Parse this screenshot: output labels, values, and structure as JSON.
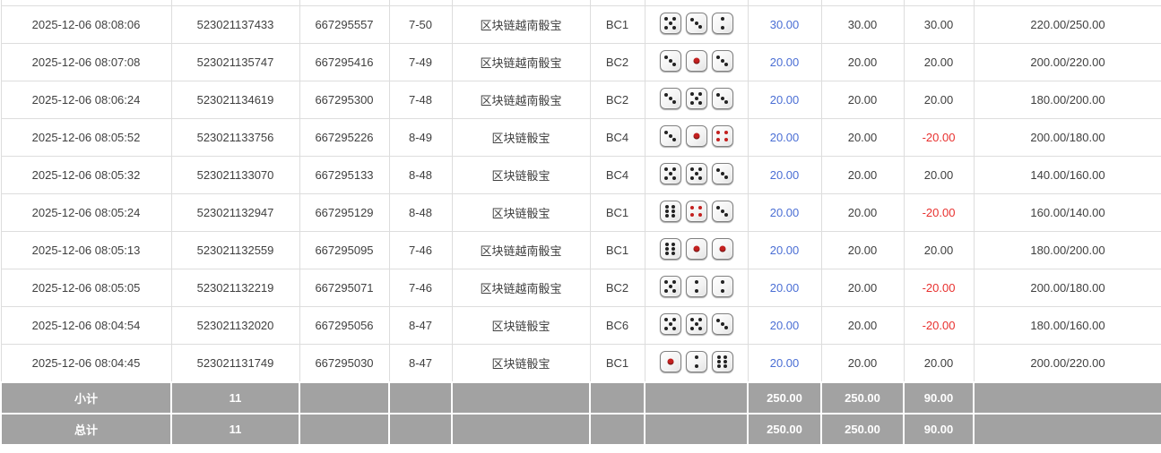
{
  "table": {
    "rows": [
      {
        "time": "2025-12-06 08:08:06",
        "order_no": "523021137433",
        "round_no": "667295557",
        "period": "7-50",
        "game": "区块链越南骰宝",
        "bet_type": "BC1",
        "dice": [
          5,
          3,
          2
        ],
        "bet_amount": "30.00",
        "valid_amount": "30.00",
        "win_loss": "30.00",
        "balance": "220.00/250.00"
      },
      {
        "time": "2025-12-06 08:07:08",
        "order_no": "523021135747",
        "round_no": "667295416",
        "period": "7-49",
        "game": "区块链越南骰宝",
        "bet_type": "BC2",
        "dice": [
          3,
          1,
          3
        ],
        "bet_amount": "20.00",
        "valid_amount": "20.00",
        "win_loss": "20.00",
        "balance": "200.00/220.00"
      },
      {
        "time": "2025-12-06 08:06:24",
        "order_no": "523021134619",
        "round_no": "667295300",
        "period": "7-48",
        "game": "区块链越南骰宝",
        "bet_type": "BC2",
        "dice": [
          3,
          5,
          3
        ],
        "bet_amount": "20.00",
        "valid_amount": "20.00",
        "win_loss": "20.00",
        "balance": "180.00/200.00"
      },
      {
        "time": "2025-12-06 08:05:52",
        "order_no": "523021133756",
        "round_no": "667295226",
        "period": "8-49",
        "game": "区块链骰宝",
        "bet_type": "BC4",
        "dice": [
          3,
          1,
          4
        ],
        "bet_amount": "20.00",
        "valid_amount": "20.00",
        "win_loss": "-20.00",
        "balance": "200.00/180.00"
      },
      {
        "time": "2025-12-06 08:05:32",
        "order_no": "523021133070",
        "round_no": "667295133",
        "period": "8-48",
        "game": "区块链骰宝",
        "bet_type": "BC4",
        "dice": [
          5,
          5,
          3
        ],
        "bet_amount": "20.00",
        "valid_amount": "20.00",
        "win_loss": "20.00",
        "balance": "140.00/160.00"
      },
      {
        "time": "2025-12-06 08:05:24",
        "order_no": "523021132947",
        "round_no": "667295129",
        "period": "8-48",
        "game": "区块链骰宝",
        "bet_type": "BC1",
        "dice": [
          6,
          4,
          3
        ],
        "bet_amount": "20.00",
        "valid_amount": "20.00",
        "win_loss": "-20.00",
        "balance": "160.00/140.00"
      },
      {
        "time": "2025-12-06 08:05:13",
        "order_no": "523021132559",
        "round_no": "667295095",
        "period": "7-46",
        "game": "区块链越南骰宝",
        "bet_type": "BC1",
        "dice": [
          6,
          1,
          1
        ],
        "bet_amount": "20.00",
        "valid_amount": "20.00",
        "win_loss": "20.00",
        "balance": "180.00/200.00"
      },
      {
        "time": "2025-12-06 08:05:05",
        "order_no": "523021132219",
        "round_no": "667295071",
        "period": "7-46",
        "game": "区块链越南骰宝",
        "bet_type": "BC2",
        "dice": [
          5,
          2,
          2
        ],
        "bet_amount": "20.00",
        "valid_amount": "20.00",
        "win_loss": "-20.00",
        "balance": "200.00/180.00"
      },
      {
        "time": "2025-12-06 08:04:54",
        "order_no": "523021132020",
        "round_no": "667295056",
        "period": "8-47",
        "game": "区块链骰宝",
        "bet_type": "BC6",
        "dice": [
          5,
          5,
          3
        ],
        "bet_amount": "20.00",
        "valid_amount": "20.00",
        "win_loss": "-20.00",
        "balance": "180.00/160.00"
      },
      {
        "time": "2025-12-06 08:04:45",
        "order_no": "523021131749",
        "round_no": "667295030",
        "period": "8-47",
        "game": "区块链骰宝",
        "bet_type": "BC1",
        "dice": [
          1,
          2,
          6
        ],
        "bet_amount": "20.00",
        "valid_amount": "20.00",
        "win_loss": "20.00",
        "balance": "200.00/220.00"
      }
    ],
    "footer": {
      "subtotal_label": "小计",
      "total_label": "总计",
      "count": "11",
      "bet_total": "250.00",
      "valid_total": "250.00",
      "winloss_total": "90.00"
    }
  },
  "colors": {
    "bet_amount_blue": "#4a6ed4",
    "negative_red": "#e8302e",
    "footer_bg": "#a2a2a2",
    "dice_black_pip": "#222222",
    "dice_red_pip": "#c3201f"
  }
}
